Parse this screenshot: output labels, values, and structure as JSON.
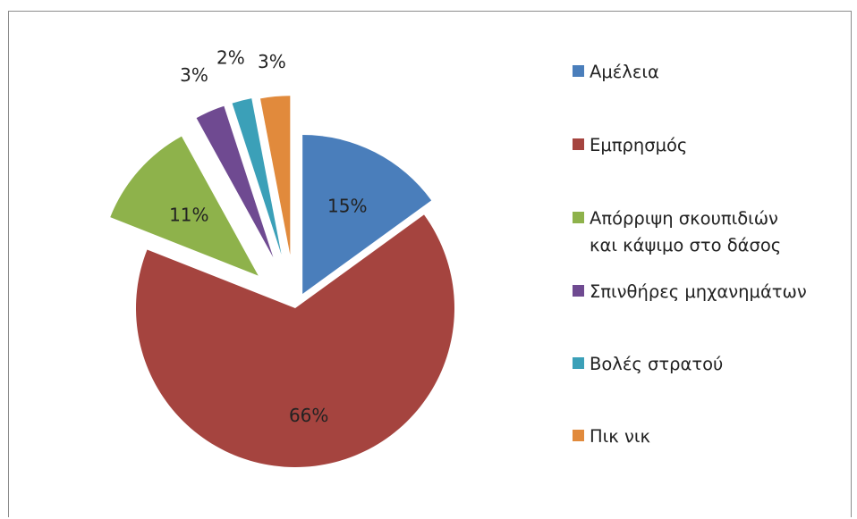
{
  "chart_data": {
    "type": "pie",
    "slices": [
      {
        "label": "Αμέλεια",
        "value": 15,
        "display": "15%",
        "color": "#4a7ebb"
      },
      {
        "label": "Εμπρησμός",
        "value": 66,
        "display": "66%",
        "color": "#a5443f"
      },
      {
        "label": "Απόρριψη σκουπιδιών και κάψιμο στο δάσος",
        "lines": [
          "Απόρριψη σκουπιδιών",
          "και κάψιμο στο δάσος"
        ],
        "value": 11,
        "display": "11%",
        "color": "#8eb24b"
      },
      {
        "label": "Σπινθήρες μηχανημάτων",
        "value": 3,
        "display": "3%",
        "color": "#6f4a91"
      },
      {
        "label": "Βολές στρατού",
        "value": 2,
        "display": "2%",
        "color": "#3ba0b8"
      },
      {
        "label": "Πικ νικ",
        "value": 3,
        "display": "3%",
        "color": "#e18a3c"
      }
    ],
    "exploded": true,
    "legend_position": "right"
  }
}
